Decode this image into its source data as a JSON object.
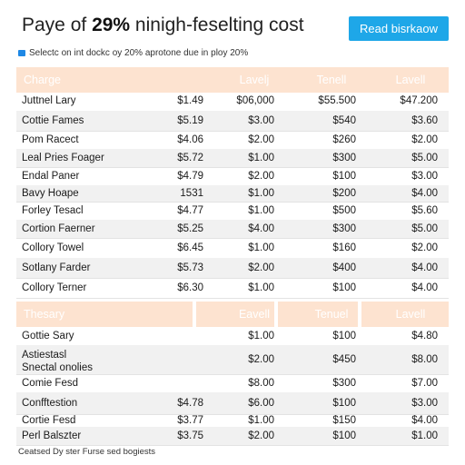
{
  "header": {
    "title_pre": "Paye of ",
    "title_bold": "29%",
    "title_post": " ninigh-feselting cost",
    "cta_label": "Read bisrkaow",
    "subtitle": "Selectc on int dockc oy 20% aprotone due in ploy 20%"
  },
  "table1": {
    "columns": [
      "Charge",
      "Lavelj",
      "Tenell",
      "Lavell"
    ],
    "rows": [
      {
        "name": "Juttnel Lary",
        "v1": "$1.49",
        "v2": "$06,000",
        "v3": "$55.500",
        "v4": "$47.200"
      },
      {
        "name": "Cottie Fames",
        "v1": "$5.19",
        "v2": "$3.00",
        "v3": "$540",
        "v4": "$3.60"
      },
      {
        "name": "Pom Racect",
        "v1": "$4.06",
        "v2": "$2.00",
        "v3": "$260",
        "v4": "$2.00"
      },
      {
        "name": "Leal Pries Foager",
        "v1": "$5.72",
        "v2": "$1.00",
        "v3": "$300",
        "v4": "$5.00"
      },
      {
        "name": "Endal Paner",
        "v1": "$4.79",
        "v2": "$2.00",
        "v3": "$100",
        "v4": "$3.00"
      },
      {
        "name": "Bavy Hoape",
        "v1": "1531",
        "v2": "$1.00",
        "v3": "$200",
        "v4": "$4.00"
      },
      {
        "name": "Forley Tesacl",
        "v1": "$4.77",
        "v2": "$1.00",
        "v3": "$500",
        "v4": "$5.60"
      },
      {
        "name": "Cortion Faerner",
        "v1": "$5.25",
        "v2": "$4.00",
        "v3": "$300",
        "v4": "$5.00"
      },
      {
        "name": "Collory Towel",
        "v1": "$6.45",
        "v2": "$1.00",
        "v3": "$160",
        "v4": "$2.00"
      },
      {
        "name": "Sotlany Farder",
        "v1": "$5.73",
        "v2": "$2.00",
        "v3": "$400",
        "v4": "$4.00"
      },
      {
        "name": "Collory Terner",
        "v1": "$6.30",
        "v2": "$1.00",
        "v3": "$100",
        "v4": "$4.00"
      }
    ]
  },
  "table2": {
    "columns": [
      "Thesary",
      "Eavell",
      "Tenuel",
      "Lavell"
    ],
    "rows": [
      {
        "name": "Gottie Sary",
        "v1": "",
        "v2": "$1.00",
        "v3": "$100",
        "v4": "$4.80"
      },
      {
        "name": "Astiestasl\nSnectal onolies",
        "v1": "",
        "v2": "$2.00",
        "v3": "$450",
        "v4": "$8.00"
      },
      {
        "name": "Comie Fesd",
        "v1": "",
        "v2": "$8.00",
        "v3": "$300",
        "v4": "$7.00"
      },
      {
        "name": "Confftestion",
        "v1": "$4.78",
        "v2": "$6.00",
        "v3": "$100",
        "v4": "$3.00"
      },
      {
        "name": "Cortie Fesd",
        "v1": "$3.77",
        "v2": "$1.00",
        "v3": "$150",
        "v4": "$4.00"
      },
      {
        "name": "Perl Balszter",
        "v1": "$3.75",
        "v2": "$2.00",
        "v3": "$100",
        "v4": "$1.00"
      }
    ]
  },
  "footer": "Ceatsed Dy ster Furse sed bogiests"
}
